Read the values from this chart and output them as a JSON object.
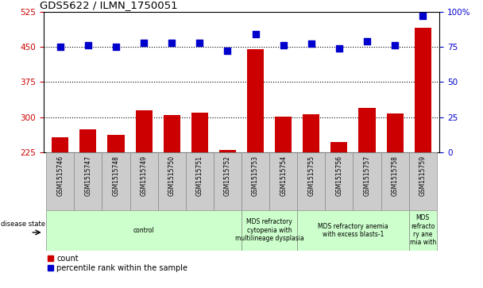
{
  "title": "GDS5622 / ILMN_1750051",
  "samples": [
    "GSM1515746",
    "GSM1515747",
    "GSM1515748",
    "GSM1515749",
    "GSM1515750",
    "GSM1515751",
    "GSM1515752",
    "GSM1515753",
    "GSM1515754",
    "GSM1515755",
    "GSM1515756",
    "GSM1515757",
    "GSM1515758",
    "GSM1515759"
  ],
  "counts": [
    258,
    275,
    262,
    315,
    305,
    310,
    230,
    445,
    302,
    307,
    248,
    320,
    308,
    490
  ],
  "percentile_ranks": [
    75,
    76,
    75,
    78,
    78,
    78,
    72,
    84,
    76,
    77,
    74,
    79,
    76,
    97
  ],
  "ylim_left": [
    225,
    525
  ],
  "ylim_right": [
    0,
    100
  ],
  "yticks_left": [
    225,
    300,
    375,
    450,
    525
  ],
  "yticks_right": [
    0,
    25,
    50,
    75,
    100
  ],
  "bar_color": "#cc0000",
  "dot_color": "#0000cc",
  "bg_color": "#ffffff",
  "tick_area_color": "#cccccc",
  "disease_group_color": "#ccffcc",
  "bar_width": 0.6,
  "dot_size": 30,
  "title_color": "#000000",
  "left_tick_color": "#cc0000",
  "right_tick_color": "#0000cc",
  "group_boundaries": [
    {
      "start": 0,
      "end": 7,
      "label": "control"
    },
    {
      "start": 7,
      "end": 9,
      "label": "MDS refractory\ncytopenia with\nmultilineage dysplasia"
    },
    {
      "start": 9,
      "end": 13,
      "label": "MDS refractory anemia\nwith excess blasts-1"
    },
    {
      "start": 13,
      "end": 14,
      "label": "MDS\nrefracto\nry ane\nmia with"
    }
  ]
}
